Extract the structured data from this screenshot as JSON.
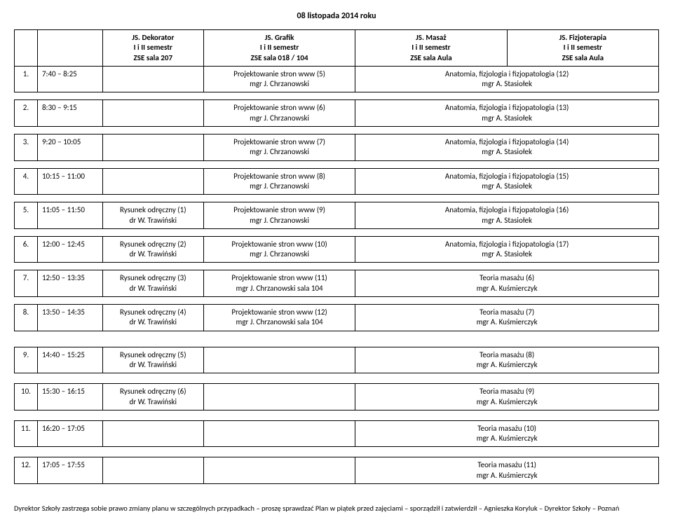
{
  "title": "08 listopada 2014 roku",
  "headers": {
    "col2": {
      "l1": "JS. Dekorator",
      "l2": "I i II semestr",
      "l3": "ZSE  sala 207"
    },
    "col3": {
      "l1": "JS. Grafik",
      "l2": "I i II semestr",
      "l3": "ZSE  sala 018 / 104"
    },
    "col4": {
      "l1": "JS. Masaż",
      "l2": "I i II semestr",
      "l3": "ZSE  sala Aula"
    },
    "col5": {
      "l1": "JS. Fizjoterapia",
      "l2": "I i II semestr",
      "l3": "ZSE  sala Aula"
    }
  },
  "rows": [
    {
      "n": "1.",
      "t": "7:40 – 8:25",
      "c2_l1": "",
      "c2_l2": "",
      "c3_l1": "Projektowanie stron www (5)",
      "c3_l2": "mgr J. Chrzanowski",
      "c4_l1": "Anatomia, fizjologia i fizjopatologia (12)",
      "c4_l2": "mgr A. Stasiołek"
    },
    {
      "n": "2.",
      "t": "8:30 – 9:15",
      "c2_l1": "",
      "c2_l2": "",
      "c3_l1": "Projektowanie stron www (6)",
      "c3_l2": "mgr J. Chrzanowski",
      "c4_l1": "Anatomia, fizjologia i fizjopatologia (13)",
      "c4_l2": "mgr A. Stasiołek"
    },
    {
      "n": "3.",
      "t": "9:20 – 10:05",
      "c2_l1": "",
      "c2_l2": "",
      "c3_l1": "Projektowanie stron www (7)",
      "c3_l2": "mgr J. Chrzanowski",
      "c4_l1": "Anatomia, fizjologia i fizjopatologia (14)",
      "c4_l2": "mgr A. Stasiołek"
    },
    {
      "n": "4.",
      "t": "10:15 – 11:00",
      "c2_l1": "",
      "c2_l2": "",
      "c3_l1": "Projektowanie stron www (8)",
      "c3_l2": "mgr J. Chrzanowski",
      "c4_l1": "Anatomia, fizjologia i fizjopatologia (15)",
      "c4_l2": "mgr A. Stasiołek"
    },
    {
      "n": "5.",
      "t": "11:05 – 11:50",
      "c2_l1": "Rysunek odręczny (1)",
      "c2_l2": "dr W. Trawiński",
      "c3_l1": "Projektowanie stron www (9)",
      "c3_l2": "mgr J. Chrzanowski",
      "c4_l1": "Anatomia, fizjologia i fizjopatologia (16)",
      "c4_l2": "mgr A. Stasiołek"
    },
    {
      "n": "6.",
      "t": "12:00 – 12:45",
      "c2_l1": "Rysunek odręczny (2)",
      "c2_l2": "dr W. Trawiński",
      "c3_l1": "Projektowanie stron www (10)",
      "c3_l2": "mgr J. Chrzanowski",
      "c4_l1": "Anatomia, fizjologia i fizjopatologia (17)",
      "c4_l2": "mgr A. Stasiołek"
    },
    {
      "n": "7.",
      "t": "12:50 – 13:35",
      "c2_l1": "Rysunek odręczny (3)",
      "c2_l2": "dr W. Trawiński",
      "c3_l1": "Projektowanie stron www (11)",
      "c3_l2": "mgr J. Chrzanowski sala 104",
      "c4_l1": "Teoria masażu (6)",
      "c4_l2": "mgr A. Kuśmierczyk"
    },
    {
      "n": "8.",
      "t": "13:50 – 14:35",
      "c2_l1": "Rysunek odręczny (4)",
      "c2_l2": "dr W. Trawiński",
      "c3_l1": "Projektowanie stron www (12)",
      "c3_l2": "mgr J. Chrzanowski sala 104",
      "c4_l1": "Teoria masażu (7)",
      "c4_l2": "mgr A. Kuśmierczyk"
    }
  ],
  "rows2": [
    {
      "n": "9.",
      "t": "14:40 – 15:25",
      "c2_l1": "Rysunek odręczny (5)",
      "c2_l2": "dr W. Trawiński",
      "c3_l1": "",
      "c3_l2": "",
      "c4_l1": "Teoria masażu (8)",
      "c4_l2": "mgr A. Kuśmierczyk"
    },
    {
      "n": "10.",
      "t": "15:30 – 16:15",
      "c2_l1": "Rysunek odręczny (6)",
      "c2_l2": "dr W. Trawiński",
      "c3_l1": "",
      "c3_l2": "",
      "c4_l1": "Teoria masażu (9)",
      "c4_l2": "mgr A. Kuśmierczyk"
    },
    {
      "n": "11.",
      "t": "16:20 – 17:05",
      "c2_l1": "",
      "c2_l2": "",
      "c3_l1": "",
      "c3_l2": "",
      "c4_l1": "Teoria masażu (10)",
      "c4_l2": "mgr A. Kuśmierczyk"
    },
    {
      "n": "12.",
      "t": "17:05 – 17:55",
      "c2_l1": "",
      "c2_l2": "",
      "c3_l1": "",
      "c3_l2": "",
      "c4_l1": "Teoria masażu (11)",
      "c4_l2": "mgr A. Kuśmierczyk"
    }
  ],
  "footnote": "Dyrektor Szkoły zastrzega sobie prawo zmiany planu w szczególnych przypadkach – proszę sprawdzać Plan w piątek przed zajęciami – sporządził i zatwierdził – Agnieszka Koryluk – Dyrektor Szkoły – Poznań"
}
